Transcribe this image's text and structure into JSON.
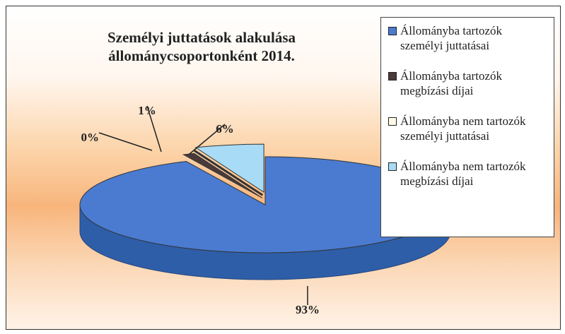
{
  "chart_data": {
    "type": "pie",
    "title": "Személyi juttatások alakulása állománycsoportonként 2014.",
    "categories": [
      "Állományba tartozók személyi juttatásai",
      "Állományba tartozók megbízási díjai",
      "Állományba nem tartozók személyi juttatásai",
      "Állományba nem tartozók megbízási díjai"
    ],
    "values": [
      93,
      1,
      0,
      6
    ],
    "value_labels": [
      "93%",
      "1%",
      "0%",
      "6%"
    ],
    "colors": [
      "#4a7bd0",
      "#4a3a3a",
      "#fffbe8",
      "#a8dcf6"
    ],
    "legend": "right"
  }
}
